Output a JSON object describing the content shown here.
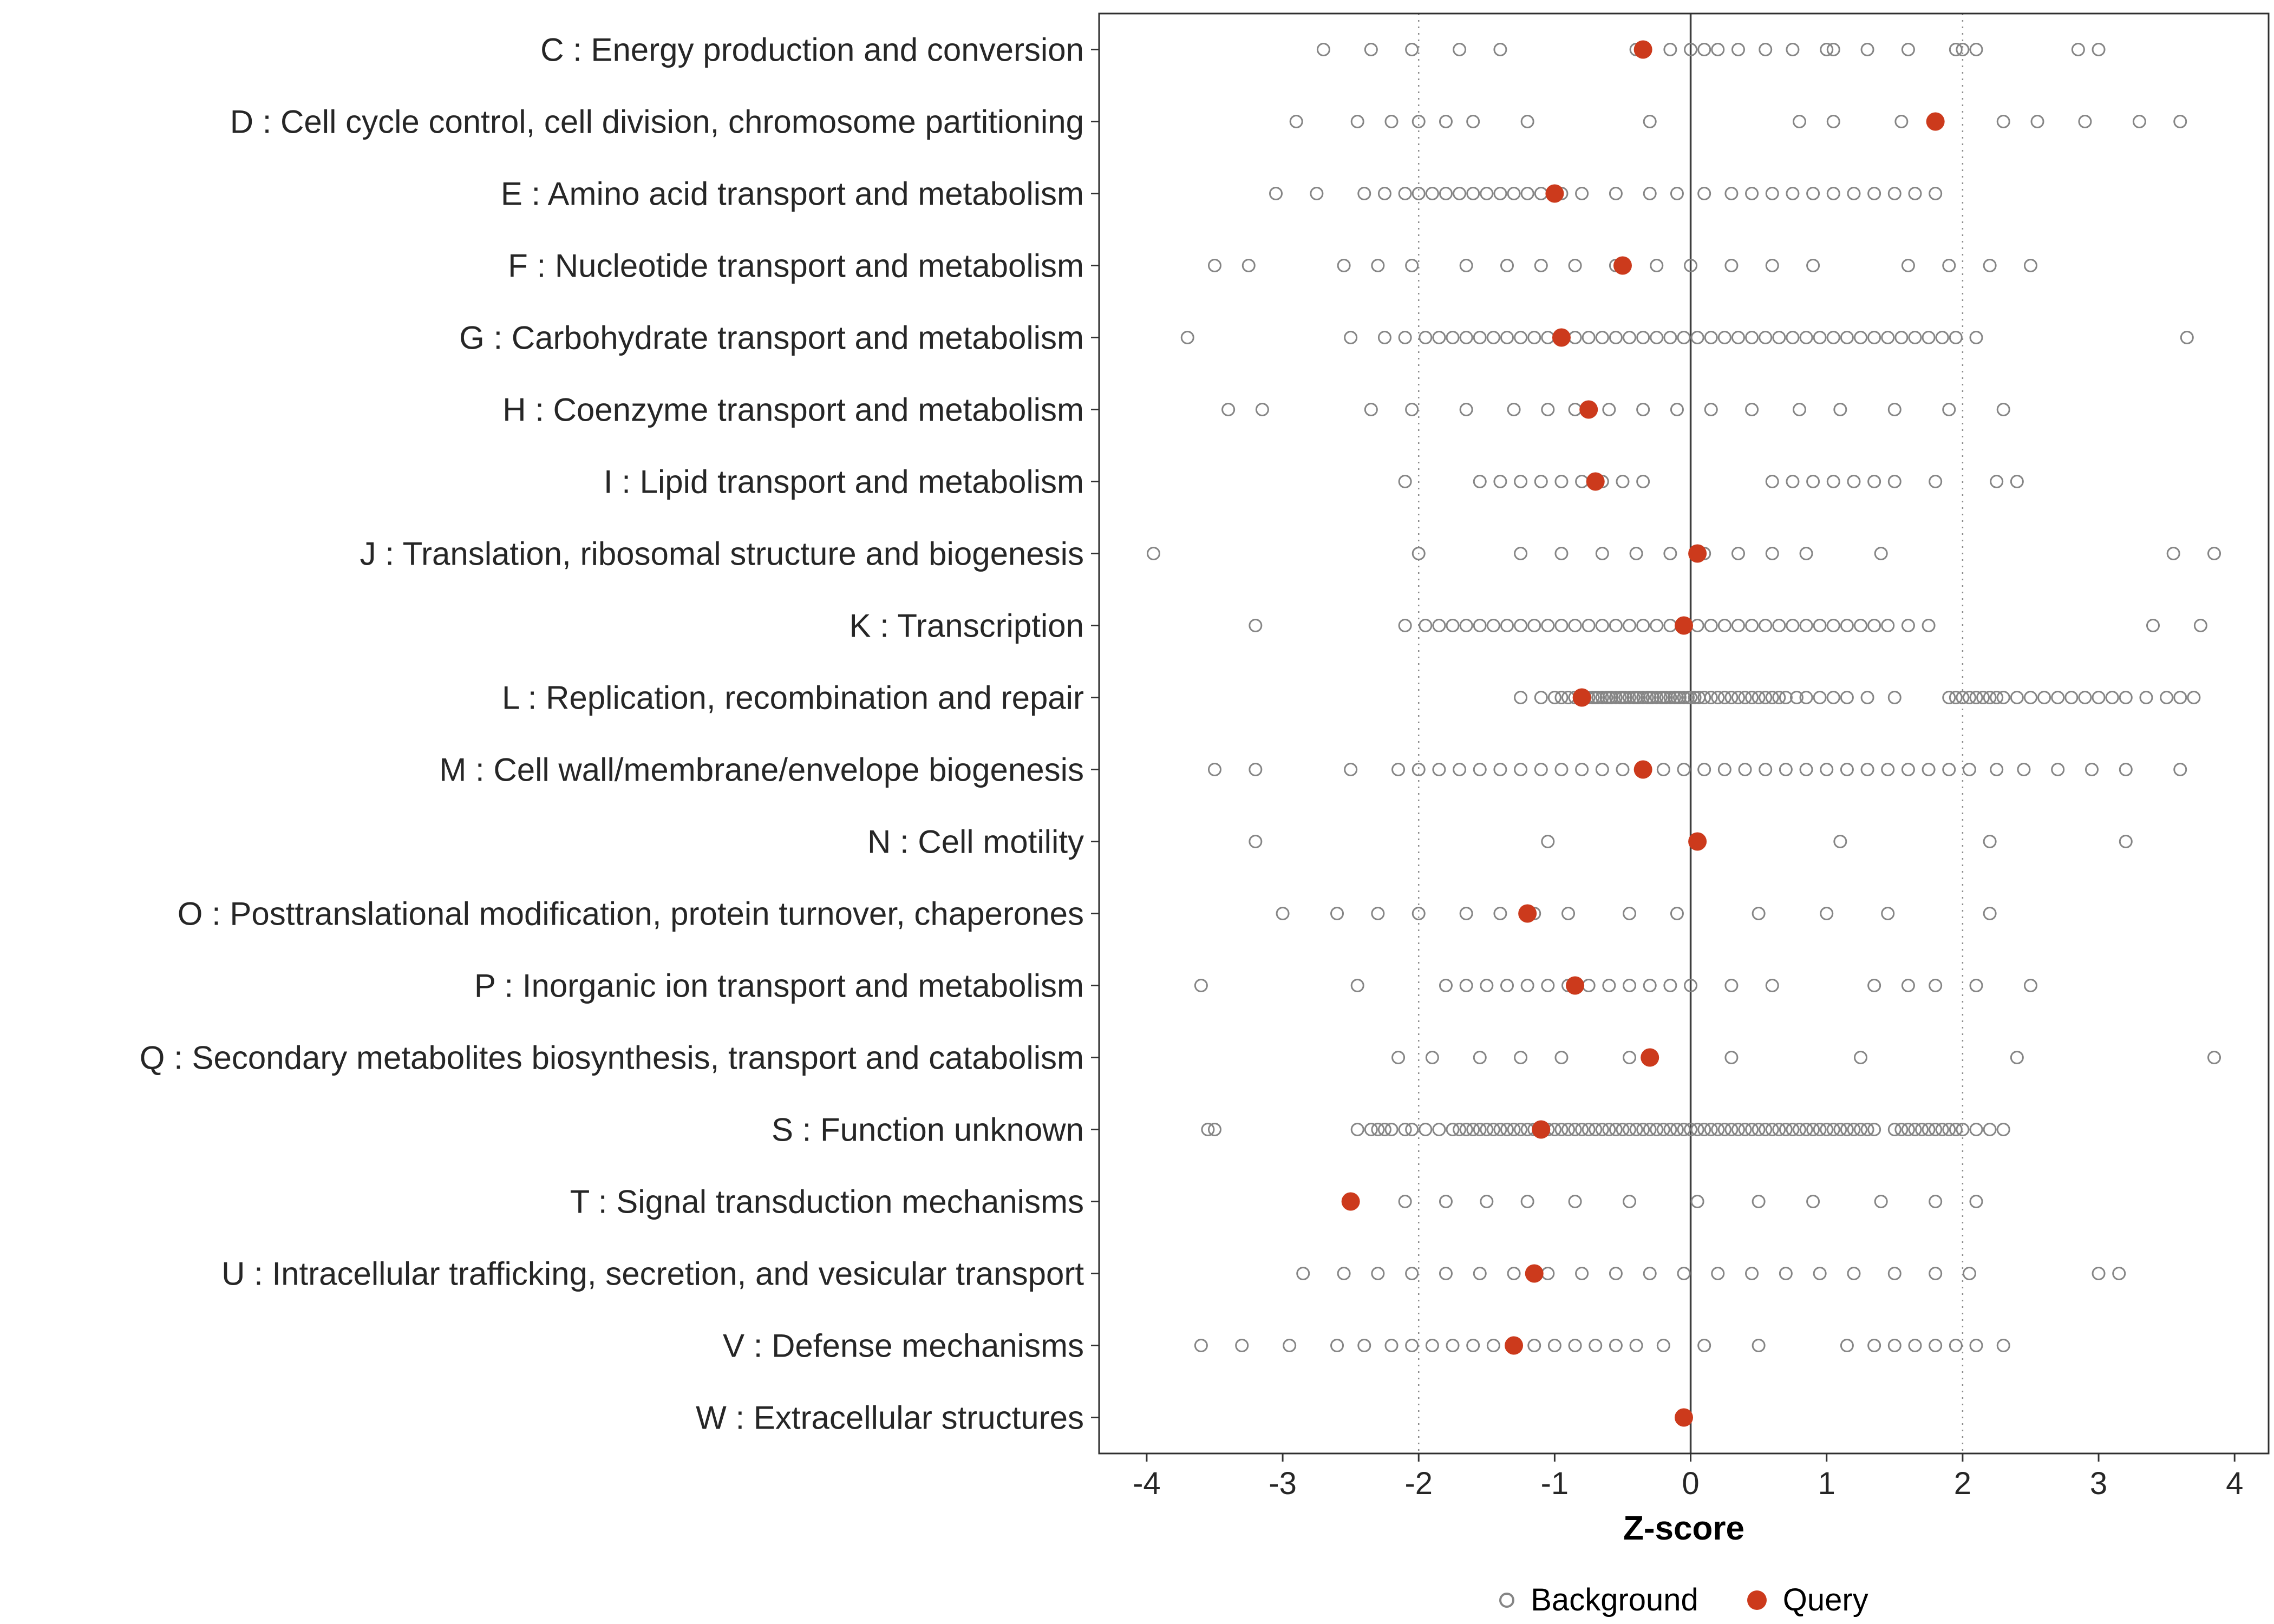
{
  "colors": {
    "query": "#cc3a1c",
    "background_stroke": "#858585",
    "ref_line_dotted": "#8c8c8c",
    "zero_line": "#3f3f3f",
    "panel_border": "#2f2f2f",
    "axis_text": "#262626",
    "tick_mark": "#333333"
  },
  "legend": {
    "background_label": "Background",
    "query_label": "Query"
  },
  "chart_data": {
    "type": "scatter",
    "title": "",
    "xlabel": "Z-score",
    "ylabel": "",
    "xlim": [
      -4.35,
      4.25
    ],
    "x_ticks": [
      -4,
      -3,
      -2,
      -1,
      0,
      1,
      2,
      3,
      4
    ],
    "reference_lines": {
      "solid": [
        0
      ],
      "dotted": [
        -2,
        2
      ]
    },
    "grid": false,
    "legend_position": "bottom",
    "categories": [
      "C : Energy production and conversion",
      "D : Cell cycle control, cell division, chromosome partitioning",
      "E : Amino acid transport and metabolism",
      "F : Nucleotide transport and metabolism",
      "G : Carbohydrate transport and metabolism",
      "H : Coenzyme transport and metabolism",
      "I : Lipid transport and metabolism",
      "J : Translation, ribosomal structure and biogenesis",
      "K : Transcription",
      "L : Replication, recombination and repair",
      "M : Cell wall/membrane/envelope biogenesis",
      "N : Cell motility",
      "O : Posttranslational modification, protein turnover, chaperones",
      "P : Inorganic ion transport and metabolism",
      "Q : Secondary metabolites biosynthesis, transport and catabolism",
      "S : Function unknown",
      "T : Signal transduction mechanisms",
      "U : Intracellular trafficking, secretion, and vesicular transport",
      "V : Defense mechanisms",
      "W : Extracellular structures"
    ],
    "series": [
      {
        "name": "Background",
        "marker": "open-circle",
        "color": "#858585",
        "values_by_category": [
          [
            -2.7,
            -2.35,
            -2.05,
            -1.7,
            -1.4,
            -0.4,
            -0.15,
            0.0,
            0.1,
            0.2,
            0.35,
            0.55,
            0.75,
            1.0,
            1.05,
            1.3,
            1.6,
            1.95,
            2.0,
            2.1,
            2.85,
            3.0
          ],
          [
            -2.9,
            -2.45,
            -2.2,
            -2.0,
            -1.8,
            -1.6,
            -1.2,
            -0.3,
            0.8,
            1.05,
            1.55,
            2.3,
            2.55,
            2.9,
            3.3,
            3.6
          ],
          [
            -3.05,
            -2.75,
            -2.4,
            -2.25,
            -2.1,
            -2.0,
            -1.9,
            -1.8,
            -1.7,
            -1.6,
            -1.5,
            -1.4,
            -1.3,
            -1.2,
            -1.1,
            -0.95,
            -0.8,
            -0.55,
            -0.3,
            -0.1,
            0.1,
            0.3,
            0.45,
            0.6,
            0.75,
            0.9,
            1.05,
            1.2,
            1.35,
            1.5,
            1.65,
            1.8
          ],
          [
            -3.5,
            -3.25,
            -2.55,
            -2.3,
            -2.05,
            -1.65,
            -1.35,
            -1.1,
            -0.85,
            -0.55,
            -0.25,
            0.0,
            0.3,
            0.6,
            0.9,
            1.6,
            1.9,
            2.2,
            2.5
          ],
          [
            -3.7,
            -2.5,
            -2.25,
            -2.1,
            -1.95,
            -1.85,
            -1.75,
            -1.65,
            -1.55,
            -1.45,
            -1.35,
            -1.25,
            -1.15,
            -1.05,
            -0.95,
            -0.85,
            -0.75,
            -0.65,
            -0.55,
            -0.45,
            -0.35,
            -0.25,
            -0.15,
            -0.05,
            0.05,
            0.15,
            0.25,
            0.35,
            0.45,
            0.55,
            0.65,
            0.75,
            0.85,
            0.95,
            1.05,
            1.15,
            1.25,
            1.35,
            1.45,
            1.55,
            1.65,
            1.75,
            1.85,
            1.95,
            2.1,
            3.65
          ],
          [
            -3.4,
            -3.15,
            -2.35,
            -2.05,
            -1.65,
            -1.3,
            -1.05,
            -0.85,
            -0.6,
            -0.35,
            -0.1,
            0.15,
            0.45,
            0.8,
            1.1,
            1.5,
            1.9,
            2.3
          ],
          [
            -2.1,
            -1.55,
            -1.4,
            -1.25,
            -1.1,
            -0.95,
            -0.8,
            -0.65,
            -0.5,
            -0.35,
            0.6,
            0.75,
            0.9,
            1.05,
            1.2,
            1.35,
            1.5,
            1.8,
            2.25,
            2.4
          ],
          [
            -3.95,
            -2.0,
            -1.25,
            -0.95,
            -0.65,
            -0.4,
            -0.15,
            0.1,
            0.35,
            0.6,
            0.85,
            1.4,
            3.55,
            3.85
          ],
          [
            -3.2,
            -2.1,
            -1.95,
            -1.85,
            -1.75,
            -1.65,
            -1.55,
            -1.45,
            -1.35,
            -1.25,
            -1.15,
            -1.05,
            -0.95,
            -0.85,
            -0.75,
            -0.65,
            -0.55,
            -0.45,
            -0.35,
            -0.25,
            -0.15,
            -0.05,
            0.05,
            0.15,
            0.25,
            0.35,
            0.45,
            0.55,
            0.65,
            0.75,
            0.85,
            0.95,
            1.05,
            1.15,
            1.25,
            1.35,
            1.45,
            1.6,
            1.75,
            3.4,
            3.75
          ],
          [
            -1.25,
            -1.1,
            -1.0,
            -0.95,
            -0.9,
            -0.85,
            -0.8,
            -0.78,
            -0.75,
            -0.72,
            -0.7,
            -0.68,
            -0.65,
            -0.62,
            -0.6,
            -0.58,
            -0.55,
            -0.52,
            -0.5,
            -0.48,
            -0.45,
            -0.42,
            -0.4,
            -0.38,
            -0.35,
            -0.32,
            -0.3,
            -0.28,
            -0.25,
            -0.22,
            -0.2,
            -0.18,
            -0.15,
            -0.12,
            -0.1,
            -0.08,
            -0.05,
            -0.02,
            0.0,
            0.03,
            0.06,
            0.1,
            0.15,
            0.2,
            0.25,
            0.3,
            0.35,
            0.4,
            0.45,
            0.5,
            0.55,
            0.6,
            0.65,
            0.7,
            0.78,
            0.85,
            0.95,
            1.05,
            1.15,
            1.3,
            1.5,
            1.9,
            1.95,
            2.0,
            2.05,
            2.1,
            2.15,
            2.2,
            2.25,
            2.3,
            2.4,
            2.5,
            2.6,
            2.7,
            2.8,
            2.9,
            3.0,
            3.1,
            3.2,
            3.35,
            3.5,
            3.6,
            3.7
          ],
          [
            -3.5,
            -3.2,
            -2.5,
            -2.15,
            -2.0,
            -1.85,
            -1.7,
            -1.55,
            -1.4,
            -1.25,
            -1.1,
            -0.95,
            -0.8,
            -0.65,
            -0.5,
            -0.35,
            -0.2,
            -0.05,
            0.1,
            0.25,
            0.4,
            0.55,
            0.7,
            0.85,
            1.0,
            1.15,
            1.3,
            1.45,
            1.6,
            1.75,
            1.9,
            2.05,
            2.25,
            2.45,
            2.7,
            2.95,
            3.2,
            3.6
          ],
          [
            -3.2,
            -1.05,
            1.1,
            2.2,
            3.2
          ],
          [
            -3.0,
            -2.6,
            -2.3,
            -2.0,
            -1.65,
            -1.4,
            -1.15,
            -0.9,
            -0.45,
            -0.1,
            0.5,
            1.0,
            1.45,
            2.2
          ],
          [
            -3.6,
            -2.45,
            -1.8,
            -1.65,
            -1.5,
            -1.35,
            -1.2,
            -1.05,
            -0.9,
            -0.75,
            -0.6,
            -0.45,
            -0.3,
            -0.15,
            0.0,
            0.3,
            0.6,
            1.35,
            1.6,
            1.8,
            2.1,
            2.5
          ],
          [
            -2.15,
            -1.9,
            -1.55,
            -1.25,
            -0.95,
            -0.45,
            0.3,
            1.25,
            2.4,
            3.85
          ],
          [
            -3.55,
            -3.5,
            -2.45,
            -2.35,
            -2.3,
            -2.25,
            -2.2,
            -2.1,
            -2.05,
            -1.95,
            -1.85,
            -1.75,
            -1.7,
            -1.65,
            -1.6,
            -1.55,
            -1.5,
            -1.45,
            -1.4,
            -1.35,
            -1.3,
            -1.25,
            -1.2,
            -1.15,
            -1.1,
            -1.05,
            -1.0,
            -0.95,
            -0.9,
            -0.85,
            -0.8,
            -0.75,
            -0.7,
            -0.65,
            -0.6,
            -0.55,
            -0.5,
            -0.45,
            -0.4,
            -0.35,
            -0.3,
            -0.25,
            -0.2,
            -0.15,
            -0.1,
            -0.05,
            0.0,
            0.05,
            0.1,
            0.15,
            0.2,
            0.25,
            0.3,
            0.35,
            0.4,
            0.45,
            0.5,
            0.55,
            0.6,
            0.65,
            0.7,
            0.75,
            0.8,
            0.85,
            0.9,
            0.95,
            1.0,
            1.05,
            1.1,
            1.15,
            1.2,
            1.25,
            1.3,
            1.35,
            1.5,
            1.55,
            1.6,
            1.65,
            1.7,
            1.75,
            1.8,
            1.85,
            1.9,
            1.95,
            2.0,
            2.1,
            2.2,
            2.3
          ],
          [
            -2.1,
            -1.8,
            -1.5,
            -1.2,
            -0.85,
            -0.45,
            0.05,
            0.5,
            0.9,
            1.4,
            1.8,
            2.1
          ],
          [
            -2.85,
            -2.55,
            -2.3,
            -2.05,
            -1.8,
            -1.55,
            -1.3,
            -1.05,
            -0.8,
            -0.55,
            -0.3,
            -0.05,
            0.2,
            0.45,
            0.7,
            0.95,
            1.2,
            1.5,
            1.8,
            2.05,
            3.0,
            3.15
          ],
          [
            -3.6,
            -3.3,
            -2.95,
            -2.6,
            -2.4,
            -2.2,
            -2.05,
            -1.9,
            -1.75,
            -1.6,
            -1.45,
            -1.3,
            -1.15,
            -1.0,
            -0.85,
            -0.7,
            -0.55,
            -0.4,
            -0.2,
            0.1,
            0.5,
            1.15,
            1.35,
            1.5,
            1.65,
            1.8,
            1.95,
            2.1,
            2.3
          ],
          []
        ]
      },
      {
        "name": "Query",
        "marker": "filled-circle",
        "color": "#cc3a1c",
        "values_by_category": [
          [
            -0.35
          ],
          [
            1.8
          ],
          [
            -1.0
          ],
          [
            -0.5
          ],
          [
            -0.95
          ],
          [
            -0.75
          ],
          [
            -0.7
          ],
          [
            0.05
          ],
          [
            -0.05
          ],
          [
            -0.8
          ],
          [
            -0.35
          ],
          [
            0.05
          ],
          [
            -1.2
          ],
          [
            -0.85
          ],
          [
            -0.3
          ],
          [
            -1.1
          ],
          [
            -2.5
          ],
          [
            -1.15
          ],
          [
            -1.3
          ],
          [
            -0.05
          ]
        ]
      }
    ]
  }
}
